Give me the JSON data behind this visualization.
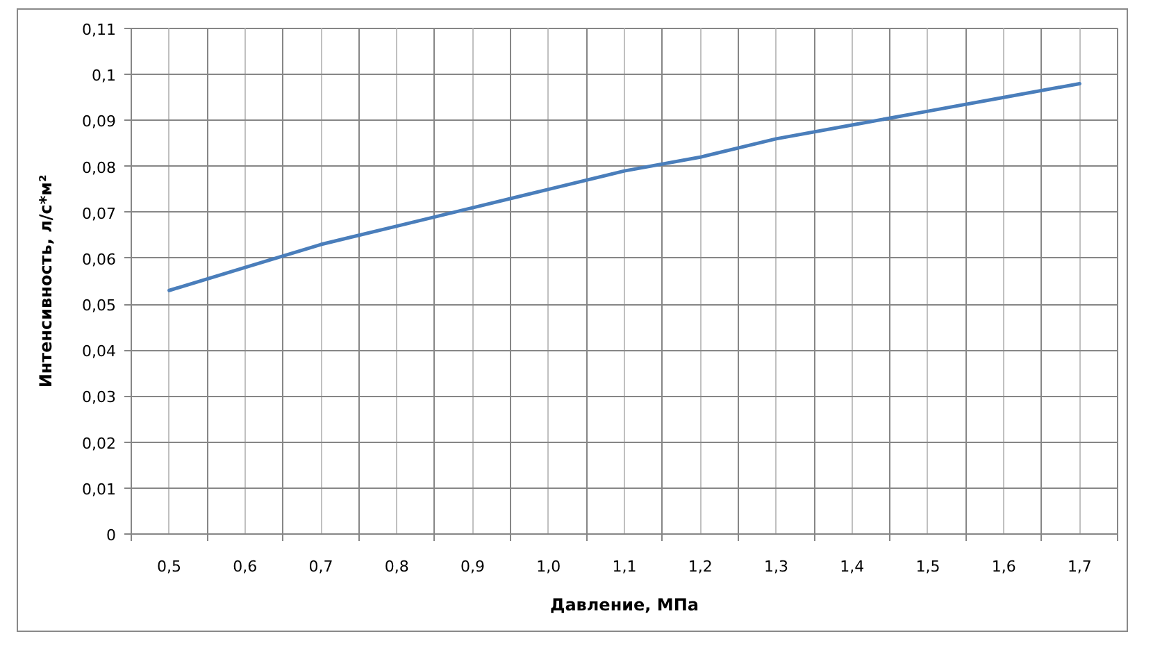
{
  "chart_data": {
    "type": "line",
    "xlabel": "Давление, МПа",
    "ylabel": "Интенсивность, л/с*м²",
    "categories": [
      "0,5",
      "0,6",
      "0,7",
      "0,8",
      "0,9",
      "1,0",
      "1,1",
      "1,2",
      "1,3",
      "1,4",
      "1,5",
      "1,6",
      "1,7"
    ],
    "series": [
      {
        "color": "#4a7ebb",
        "values": [
          0.053,
          0.058,
          0.063,
          0.067,
          0.071,
          0.075,
          0.079,
          0.082,
          0.086,
          0.089,
          0.092,
          0.095,
          0.098
        ]
      }
    ],
    "ylim": [
      0,
      0.11
    ],
    "yticks": [
      0,
      {
        "value": 0.01,
        "label": "0,01"
      },
      {
        "value": 0.02,
        "label": "0,02"
      },
      {
        "value": 0.03,
        "label": "0,03"
      },
      {
        "value": 0.04,
        "label": "0,04"
      },
      {
        "value": 0.05,
        "label": "0,05"
      },
      {
        "value": 0.06,
        "label": "0,06"
      },
      {
        "value": 0.07,
        "label": "0,07"
      },
      {
        "value": 0.08,
        "label": "0,08"
      },
      {
        "value": 0.09,
        "label": "0,09"
      },
      {
        "value": 0.1,
        "label": "0,1"
      },
      {
        "value": 0.11,
        "label": "0,11"
      }
    ],
    "grid": true
  }
}
